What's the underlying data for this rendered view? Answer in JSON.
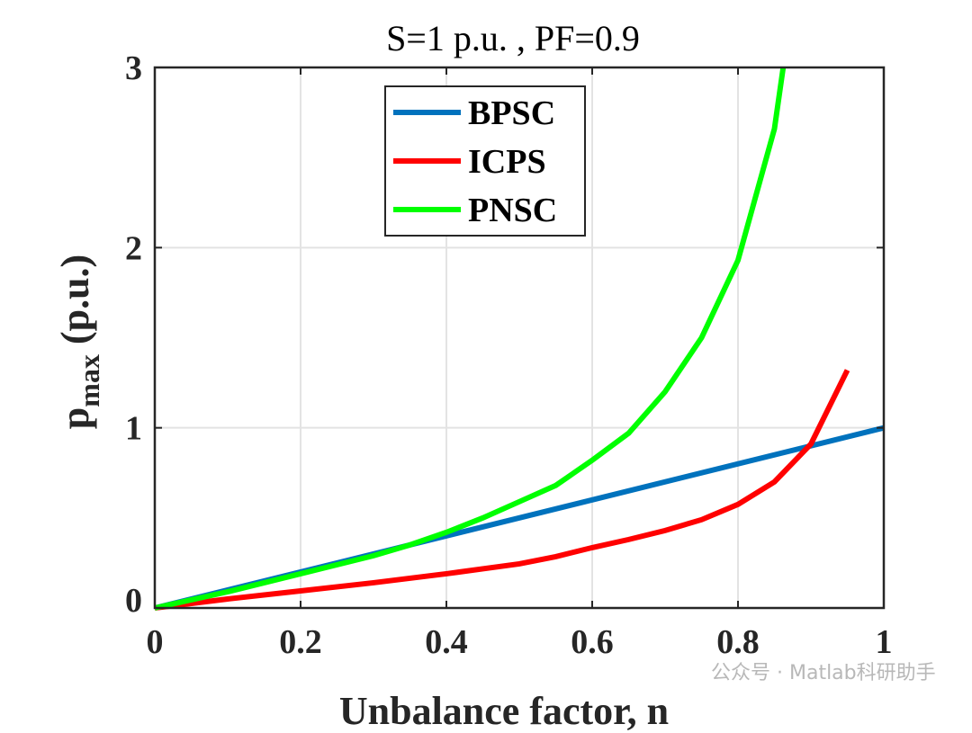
{
  "chart_data": {
    "type": "line",
    "title": "S=1 p.u. , PF=0.9",
    "xlabel": "Unbalance factor, n",
    "ylabel": {
      "main": "p",
      "subscript": "max",
      "suffix": " (p.u.)"
    },
    "xlim": [
      0,
      1
    ],
    "ylim": [
      0,
      3
    ],
    "xticks": [
      0,
      0.2,
      0.4,
      0.6,
      0.8,
      1
    ],
    "xtick_labels": [
      "0",
      "0.2",
      "0.4",
      "0.6",
      "0.8",
      "1"
    ],
    "yticks": [
      0,
      1,
      2,
      3
    ],
    "ytick_labels": [
      "0",
      "1",
      "2",
      "3"
    ],
    "grid": true,
    "legend_position": "top-left-center",
    "series": [
      {
        "name": "BPSC",
        "color": "#0072BD",
        "x": [
          0,
          1
        ],
        "y": [
          0,
          1
        ]
      },
      {
        "name": "ICPS",
        "color": "#FF0000",
        "x": [
          0,
          0.1,
          0.2,
          0.3,
          0.4,
          0.5,
          0.55,
          0.6,
          0.65,
          0.7,
          0.75,
          0.8,
          0.85,
          0.9,
          0.95
        ],
        "y": [
          0,
          0.05,
          0.095,
          0.14,
          0.19,
          0.245,
          0.285,
          0.335,
          0.38,
          0.43,
          0.49,
          0.575,
          0.7,
          0.91,
          1.32
        ]
      },
      {
        "name": "PNSC",
        "color": "#00FF00",
        "x": [
          0,
          0.1,
          0.2,
          0.3,
          0.35,
          0.4,
          0.45,
          0.5,
          0.55,
          0.6,
          0.65,
          0.7,
          0.75,
          0.8,
          0.85,
          0.862
        ],
        "y": [
          0,
          0.09,
          0.19,
          0.29,
          0.35,
          0.42,
          0.5,
          0.59,
          0.68,
          0.82,
          0.97,
          1.2,
          1.5,
          1.93,
          2.66,
          3.0
        ]
      }
    ]
  },
  "watermark": "公众号 · Matlab科研助手"
}
